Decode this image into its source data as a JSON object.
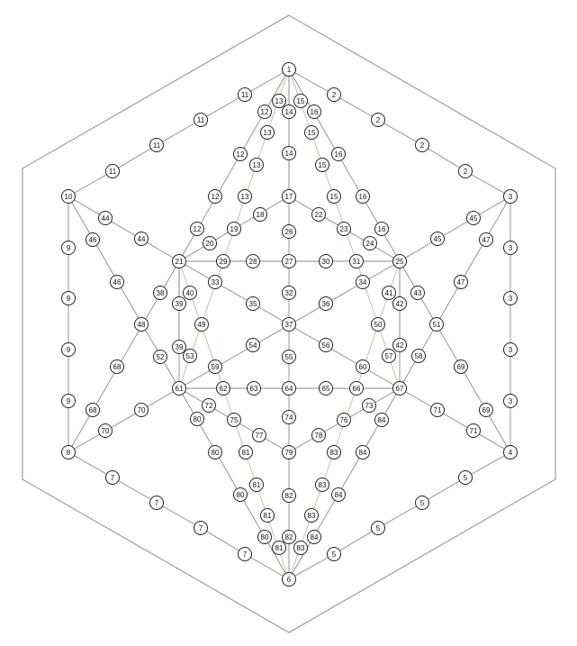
{
  "diagram": {
    "description_free": true,
    "colors": {
      "background": "#ffffff",
      "line": "#8a8a8a",
      "line_alt": "#c6b89a",
      "node_stroke": "#222222"
    },
    "nodes": [
      {
        "id": "a1",
        "label": "1"
      },
      {
        "id": "a2",
        "label": "2"
      },
      {
        "id": "a3",
        "label": "2"
      },
      {
        "id": "a4",
        "label": "2"
      },
      {
        "id": "a5",
        "label": "2"
      },
      {
        "id": "a6",
        "label": "3"
      },
      {
        "id": "a7",
        "label": "3"
      },
      {
        "id": "a8",
        "label": "3"
      },
      {
        "id": "a9",
        "label": "3"
      },
      {
        "id": "a10",
        "label": "3"
      },
      {
        "id": "a11",
        "label": "4"
      },
      {
        "id": "a12",
        "label": "5"
      },
      {
        "id": "a13",
        "label": "5"
      },
      {
        "id": "a14",
        "label": "5"
      },
      {
        "id": "a15",
        "label": "5"
      },
      {
        "id": "a16",
        "label": "6"
      },
      {
        "id": "a17",
        "label": "7"
      },
      {
        "id": "a18",
        "label": "7"
      },
      {
        "id": "a19",
        "label": "7"
      },
      {
        "id": "a20",
        "label": "7"
      },
      {
        "id": "a21",
        "label": "8"
      },
      {
        "id": "a22",
        "label": "9"
      },
      {
        "id": "a23",
        "label": "9"
      },
      {
        "id": "a24",
        "label": "9"
      },
      {
        "id": "a25",
        "label": "9"
      },
      {
        "id": "a26",
        "label": "10"
      },
      {
        "id": "a27",
        "label": "11"
      },
      {
        "id": "a28",
        "label": "11"
      },
      {
        "id": "a29",
        "label": "11"
      },
      {
        "id": "a30",
        "label": "11"
      },
      {
        "id": "b1",
        "label": "13"
      },
      {
        "id": "b2",
        "label": "14"
      },
      {
        "id": "b3",
        "label": "15"
      },
      {
        "id": "b4",
        "label": "12"
      },
      {
        "id": "b5",
        "label": "13"
      },
      {
        "id": "b6",
        "label": "16"
      },
      {
        "id": "b7",
        "label": "15"
      },
      {
        "id": "b8",
        "label": "12"
      },
      {
        "id": "b9",
        "label": "13"
      },
      {
        "id": "b10",
        "label": "14"
      },
      {
        "id": "b11",
        "label": "15"
      },
      {
        "id": "b12",
        "label": "16"
      },
      {
        "id": "b13",
        "label": "12"
      },
      {
        "id": "b14",
        "label": "13"
      },
      {
        "id": "b15",
        "label": "17"
      },
      {
        "id": "b16",
        "label": "15"
      },
      {
        "id": "b17",
        "label": "16"
      },
      {
        "id": "b18",
        "label": "12"
      },
      {
        "id": "b19",
        "label": "16"
      },
      {
        "id": "c1",
        "label": "18"
      },
      {
        "id": "c2",
        "label": "22"
      },
      {
        "id": "c3",
        "label": "19"
      },
      {
        "id": "c4",
        "label": "23"
      },
      {
        "id": "c5",
        "label": "20"
      },
      {
        "id": "c6",
        "label": "26"
      },
      {
        "id": "c7",
        "label": "24"
      },
      {
        "id": "c8",
        "label": "44"
      },
      {
        "id": "c9",
        "label": "45"
      },
      {
        "id": "c10",
        "label": "46"
      },
      {
        "id": "c11",
        "label": "47"
      },
      {
        "id": "c12",
        "label": "44"
      },
      {
        "id": "c13",
        "label": "45"
      },
      {
        "id": "d1",
        "label": "21"
      },
      {
        "id": "d2",
        "label": "29"
      },
      {
        "id": "d3",
        "label": "28"
      },
      {
        "id": "d4",
        "label": "27"
      },
      {
        "id": "d5",
        "label": "30"
      },
      {
        "id": "d6",
        "label": "31"
      },
      {
        "id": "d7",
        "label": "25"
      },
      {
        "id": "d8",
        "label": "46"
      },
      {
        "id": "d9",
        "label": "33"
      },
      {
        "id": "d10",
        "label": "34"
      },
      {
        "id": "d11",
        "label": "47"
      },
      {
        "id": "d12",
        "label": "38"
      },
      {
        "id": "d13",
        "label": "40"
      },
      {
        "id": "d14",
        "label": "32"
      },
      {
        "id": "d15",
        "label": "41"
      },
      {
        "id": "d16",
        "label": "43"
      },
      {
        "id": "d17",
        "label": "39"
      },
      {
        "id": "d18",
        "label": "35"
      },
      {
        "id": "d19",
        "label": "36"
      },
      {
        "id": "d20",
        "label": "42"
      },
      {
        "id": "e1",
        "label": "48"
      },
      {
        "id": "e2",
        "label": "49"
      },
      {
        "id": "e3",
        "label": "37"
      },
      {
        "id": "e4",
        "label": "50"
      },
      {
        "id": "e5",
        "label": "51"
      },
      {
        "id": "e6",
        "label": "54"
      },
      {
        "id": "e7",
        "label": "56"
      },
      {
        "id": "e8",
        "label": "39"
      },
      {
        "id": "e9",
        "label": "53"
      },
      {
        "id": "e10",
        "label": "55"
      },
      {
        "id": "e11",
        "label": "57"
      },
      {
        "id": "e12",
        "label": "42"
      },
      {
        "id": "e13",
        "label": "68"
      },
      {
        "id": "e14",
        "label": "52"
      },
      {
        "id": "e15",
        "label": "59"
      },
      {
        "id": "e16",
        "label": "60"
      },
      {
        "id": "e17",
        "label": "58"
      },
      {
        "id": "e18",
        "label": "69"
      },
      {
        "id": "f1",
        "label": "61"
      },
      {
        "id": "f2",
        "label": "62"
      },
      {
        "id": "f3",
        "label": "63"
      },
      {
        "id": "f4",
        "label": "64"
      },
      {
        "id": "f5",
        "label": "65"
      },
      {
        "id": "f6",
        "label": "66"
      },
      {
        "id": "f7",
        "label": "67"
      },
      {
        "id": "f8",
        "label": "72"
      },
      {
        "id": "f9",
        "label": "73"
      },
      {
        "id": "f10",
        "label": "68"
      },
      {
        "id": "f11",
        "label": "70"
      },
      {
        "id": "f12",
        "label": "75"
      },
      {
        "id": "f13",
        "label": "74"
      },
      {
        "id": "f14",
        "label": "76"
      },
      {
        "id": "f15",
        "label": "71"
      },
      {
        "id": "f16",
        "label": "69"
      },
      {
        "id": "f17",
        "label": "80"
      },
      {
        "id": "f18",
        "label": "84"
      },
      {
        "id": "f19",
        "label": "70"
      },
      {
        "id": "f20",
        "label": "77"
      },
      {
        "id": "f21",
        "label": "78"
      },
      {
        "id": "f22",
        "label": "71"
      },
      {
        "id": "g1",
        "label": "80"
      },
      {
        "id": "g2",
        "label": "81"
      },
      {
        "id": "g3",
        "label": "79"
      },
      {
        "id": "g4",
        "label": "83"
      },
      {
        "id": "g5",
        "label": "84"
      },
      {
        "id": "g6",
        "label": "81"
      },
      {
        "id": "g7",
        "label": "83"
      },
      {
        "id": "g8",
        "label": "80"
      },
      {
        "id": "g9",
        "label": "82"
      },
      {
        "id": "g10",
        "label": "84"
      },
      {
        "id": "g11",
        "label": "81"
      },
      {
        "id": "g12",
        "label": "83"
      },
      {
        "id": "g13",
        "label": "80"
      },
      {
        "id": "g14",
        "label": "82"
      },
      {
        "id": "g15",
        "label": "84"
      },
      {
        "id": "g16",
        "label": "81"
      },
      {
        "id": "g17",
        "label": "83"
      }
    ]
  }
}
